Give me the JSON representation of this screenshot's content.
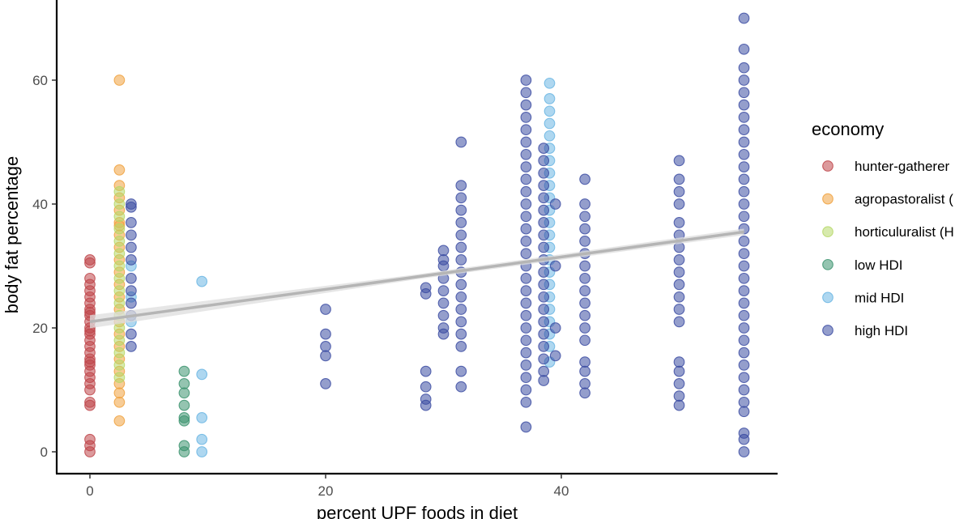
{
  "chart_data": {
    "type": "scatter",
    "title": "",
    "xlabel": "percent UPF foods in diet",
    "ylabel": "body fat percentage",
    "xlim": [
      -2.5,
      58.5
    ],
    "ylim": [
      -3.5,
      73
    ],
    "x_ticks": [
      0,
      20,
      40
    ],
    "y_ticks": [
      0,
      20,
      40,
      60
    ],
    "grid": false,
    "legend": {
      "title": "economy",
      "position": "right"
    },
    "series": [
      {
        "name": "hunter-gatherer",
        "color": "#c0474b",
        "points": [
          [
            0,
            0
          ],
          [
            0,
            1
          ],
          [
            0,
            2
          ],
          [
            0,
            7.5
          ],
          [
            0,
            8
          ],
          [
            0,
            10
          ],
          [
            0,
            11
          ],
          [
            0,
            12
          ],
          [
            0,
            13
          ],
          [
            0,
            14
          ],
          [
            0,
            14.5
          ],
          [
            0,
            15
          ],
          [
            0,
            16
          ],
          [
            0,
            17
          ],
          [
            0,
            18
          ],
          [
            0,
            19
          ],
          [
            0,
            19.5
          ],
          [
            0,
            20
          ],
          [
            0,
            21
          ],
          [
            0,
            22
          ],
          [
            0,
            22.5
          ],
          [
            0,
            23
          ],
          [
            0,
            24
          ],
          [
            0,
            25
          ],
          [
            0,
            26
          ],
          [
            0,
            27
          ],
          [
            0,
            28
          ],
          [
            0,
            30.5
          ],
          [
            0,
            31
          ]
        ]
      },
      {
        "name": "agropastoralist (",
        "color": "#f0a23f",
        "points": [
          [
            2.5,
            5
          ],
          [
            2.5,
            8
          ],
          [
            2.5,
            9.5
          ],
          [
            2.5,
            11
          ],
          [
            2.5,
            13
          ],
          [
            2.5,
            15
          ],
          [
            2.5,
            17
          ],
          [
            2.5,
            19
          ],
          [
            2.5,
            21
          ],
          [
            2.5,
            23
          ],
          [
            2.5,
            25
          ],
          [
            2.5,
            27
          ],
          [
            2.5,
            29
          ],
          [
            2.5,
            31
          ],
          [
            2.5,
            33
          ],
          [
            2.5,
            35
          ],
          [
            2.5,
            36.5
          ],
          [
            2.5,
            37
          ],
          [
            2.5,
            39
          ],
          [
            2.5,
            41
          ],
          [
            2.5,
            43
          ],
          [
            2.5,
            45.5
          ],
          [
            2.5,
            60
          ]
        ]
      },
      {
        "name": "horticuluralist (H",
        "color": "#b7d86a",
        "points": [
          [
            2.5,
            12
          ],
          [
            2.5,
            14
          ],
          [
            2.5,
            16
          ],
          [
            2.5,
            18
          ],
          [
            2.5,
            20
          ],
          [
            2.5,
            22
          ],
          [
            2.5,
            24
          ],
          [
            2.5,
            26
          ],
          [
            2.5,
            28
          ],
          [
            2.5,
            30
          ],
          [
            2.5,
            32
          ],
          [
            2.5,
            34
          ],
          [
            2.5,
            36
          ],
          [
            2.5,
            38
          ],
          [
            2.5,
            40
          ],
          [
            2.5,
            42
          ]
        ]
      },
      {
        "name": "low HDI",
        "color": "#3d9470",
        "points": [
          [
            8,
            0
          ],
          [
            8,
            1
          ],
          [
            8,
            5
          ],
          [
            8,
            5.5
          ],
          [
            8,
            7.5
          ],
          [
            8,
            9.5
          ],
          [
            8,
            11
          ],
          [
            8,
            13
          ]
        ]
      },
      {
        "name": "mid HDI",
        "color": "#6bb6e3",
        "points": [
          [
            3.5,
            21
          ],
          [
            3.5,
            25
          ],
          [
            3.5,
            30
          ],
          [
            9.5,
            0
          ],
          [
            9.5,
            2
          ],
          [
            9.5,
            5.5
          ],
          [
            9.5,
            12.5
          ],
          [
            9.5,
            27.5
          ],
          [
            39,
            14.5
          ],
          [
            39,
            17
          ],
          [
            39,
            19
          ],
          [
            39,
            21
          ],
          [
            39,
            23
          ],
          [
            39,
            25
          ],
          [
            39,
            27
          ],
          [
            39,
            29
          ],
          [
            39,
            31
          ],
          [
            39,
            33
          ],
          [
            39,
            35
          ],
          [
            39,
            37
          ],
          [
            39,
            39
          ],
          [
            39,
            41
          ],
          [
            39,
            43
          ],
          [
            39,
            45
          ],
          [
            39,
            47
          ],
          [
            39,
            49
          ],
          [
            39,
            51
          ],
          [
            39,
            53
          ],
          [
            39,
            55
          ],
          [
            39,
            57
          ],
          [
            39,
            59.5
          ]
        ]
      },
      {
        "name": "high HDI",
        "color": "#3d4ea3",
        "points": [
          [
            3.5,
            17
          ],
          [
            3.5,
            19
          ],
          [
            3.5,
            22
          ],
          [
            3.5,
            24
          ],
          [
            3.5,
            26
          ],
          [
            3.5,
            28
          ],
          [
            3.5,
            31
          ],
          [
            3.5,
            33
          ],
          [
            3.5,
            35
          ],
          [
            3.5,
            37
          ],
          [
            3.5,
            39.5
          ],
          [
            3.5,
            40
          ],
          [
            20,
            11
          ],
          [
            20,
            15.5
          ],
          [
            20,
            17
          ],
          [
            20,
            19
          ],
          [
            20,
            23
          ],
          [
            28.5,
            7.5
          ],
          [
            28.5,
            8.5
          ],
          [
            28.5,
            10.5
          ],
          [
            28.5,
            13
          ],
          [
            28.5,
            25.5
          ],
          [
            28.5,
            26.5
          ],
          [
            30,
            19
          ],
          [
            30,
            20
          ],
          [
            30,
            22
          ],
          [
            30,
            24
          ],
          [
            30,
            26
          ],
          [
            30,
            28
          ],
          [
            30,
            30
          ],
          [
            30,
            31
          ],
          [
            30,
            32.5
          ],
          [
            31.5,
            10.5
          ],
          [
            31.5,
            13
          ],
          [
            31.5,
            17
          ],
          [
            31.5,
            19
          ],
          [
            31.5,
            21
          ],
          [
            31.5,
            23
          ],
          [
            31.5,
            25
          ],
          [
            31.5,
            27
          ],
          [
            31.5,
            29
          ],
          [
            31.5,
            31
          ],
          [
            31.5,
            33
          ],
          [
            31.5,
            35
          ],
          [
            31.5,
            37
          ],
          [
            31.5,
            39
          ],
          [
            31.5,
            41
          ],
          [
            31.5,
            43
          ],
          [
            31.5,
            50
          ],
          [
            37,
            4
          ],
          [
            37,
            8
          ],
          [
            37,
            10
          ],
          [
            37,
            12
          ],
          [
            37,
            14
          ],
          [
            37,
            16
          ],
          [
            37,
            18
          ],
          [
            37,
            20
          ],
          [
            37,
            22
          ],
          [
            37,
            24
          ],
          [
            37,
            26
          ],
          [
            37,
            28
          ],
          [
            37,
            30
          ],
          [
            37,
            32
          ],
          [
            37,
            34
          ],
          [
            37,
            36
          ],
          [
            37,
            38
          ],
          [
            37,
            40
          ],
          [
            37,
            42
          ],
          [
            37,
            44
          ],
          [
            37,
            46
          ],
          [
            37,
            48
          ],
          [
            37,
            50
          ],
          [
            37,
            52
          ],
          [
            37,
            54
          ],
          [
            37,
            56
          ],
          [
            37,
            58
          ],
          [
            37,
            60
          ],
          [
            38.5,
            11.5
          ],
          [
            38.5,
            13
          ],
          [
            38.5,
            15
          ],
          [
            38.5,
            17
          ],
          [
            38.5,
            19
          ],
          [
            38.5,
            21
          ],
          [
            38.5,
            23
          ],
          [
            38.5,
            25
          ],
          [
            38.5,
            27
          ],
          [
            38.5,
            29
          ],
          [
            38.5,
            31
          ],
          [
            38.5,
            33
          ],
          [
            38.5,
            35
          ],
          [
            38.5,
            37
          ],
          [
            38.5,
            39
          ],
          [
            38.5,
            41
          ],
          [
            38.5,
            43
          ],
          [
            38.5,
            45
          ],
          [
            38.5,
            47
          ],
          [
            38.5,
            49
          ],
          [
            39.5,
            15.5
          ],
          [
            39.5,
            20
          ],
          [
            39.5,
            30
          ],
          [
            39.5,
            40
          ],
          [
            42,
            9.5
          ],
          [
            42,
            11
          ],
          [
            42,
            13
          ],
          [
            42,
            14.5
          ],
          [
            42,
            18
          ],
          [
            42,
            20
          ],
          [
            42,
            22
          ],
          [
            42,
            24
          ],
          [
            42,
            26
          ],
          [
            42,
            28
          ],
          [
            42,
            30
          ],
          [
            42,
            32
          ],
          [
            42,
            34
          ],
          [
            42,
            36
          ],
          [
            42,
            38
          ],
          [
            42,
            40
          ],
          [
            42,
            44
          ],
          [
            50,
            7.5
          ],
          [
            50,
            9
          ],
          [
            50,
            11
          ],
          [
            50,
            13
          ],
          [
            50,
            14.5
          ],
          [
            50,
            21
          ],
          [
            50,
            23
          ],
          [
            50,
            25
          ],
          [
            50,
            27
          ],
          [
            50,
            29
          ],
          [
            50,
            31
          ],
          [
            50,
            33
          ],
          [
            50,
            35
          ],
          [
            50,
            37
          ],
          [
            50,
            40
          ],
          [
            50,
            42
          ],
          [
            50,
            44
          ],
          [
            50,
            47
          ],
          [
            55.5,
            0
          ],
          [
            55.5,
            2
          ],
          [
            55.5,
            3
          ],
          [
            55.5,
            6.5
          ],
          [
            55.5,
            8
          ],
          [
            55.5,
            10
          ],
          [
            55.5,
            12
          ],
          [
            55.5,
            14
          ],
          [
            55.5,
            16
          ],
          [
            55.5,
            18
          ],
          [
            55.5,
            20
          ],
          [
            55.5,
            22
          ],
          [
            55.5,
            24
          ],
          [
            55.5,
            26
          ],
          [
            55.5,
            28
          ],
          [
            55.5,
            30
          ],
          [
            55.5,
            32
          ],
          [
            55.5,
            34
          ],
          [
            55.5,
            36
          ],
          [
            55.5,
            38
          ],
          [
            55.5,
            40
          ],
          [
            55.5,
            42
          ],
          [
            55.5,
            44
          ],
          [
            55.5,
            46
          ],
          [
            55.5,
            48
          ],
          [
            55.5,
            50
          ],
          [
            55.5,
            52
          ],
          [
            55.5,
            54
          ],
          [
            55.5,
            56
          ],
          [
            55.5,
            58
          ],
          [
            55.5,
            60
          ],
          [
            55.5,
            62
          ],
          [
            55.5,
            65
          ],
          [
            55.5,
            70
          ]
        ]
      }
    ],
    "trend_line": {
      "color": "#b5b5b5",
      "band_color": "#dedede",
      "points": [
        [
          0,
          21
        ],
        [
          55.5,
          35.5
        ]
      ]
    }
  }
}
